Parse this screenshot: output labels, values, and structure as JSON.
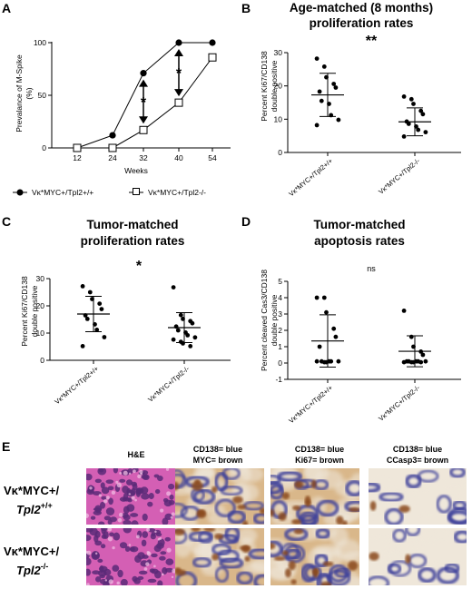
{
  "panels": {
    "A": {
      "label": "A"
    },
    "B": {
      "label": "B",
      "title_line1": "Age-matched (8 months)",
      "title_line2": "proliferation rates"
    },
    "C": {
      "label": "C",
      "title_line1": "Tumor-matched",
      "title_line2": "proliferation rates"
    },
    "D": {
      "label": "D",
      "title_line1": "Tumor-matched",
      "title_line2": "apoptosis rates"
    },
    "E": {
      "label": "E"
    }
  },
  "chart_data": [
    {
      "panel": "A",
      "type": "line",
      "x": [
        12,
        24,
        32,
        40,
        54
      ],
      "xlabel": "Weeks",
      "ylabel_line1": "Prevalance of M-Spike",
      "ylabel_line2": "(%)",
      "ylim": [
        0,
        100
      ],
      "yticks": [
        "0",
        "50",
        "100"
      ],
      "series": [
        {
          "name": "Vκ*MYC+/Tpl2+/+",
          "marker": "filled-circle",
          "values": [
            0,
            12,
            71,
            100,
            100
          ]
        },
        {
          "name": "Vκ*MYC+/Tpl2-/-",
          "marker": "open-square",
          "values": [
            0,
            0,
            17,
            43,
            86
          ]
        }
      ],
      "annotations": [
        "*",
        "*"
      ]
    },
    {
      "panel": "B",
      "type": "scatter",
      "categories": [
        "Vκ*MYC+/Tpl2+/+",
        "Vκ*MYC+/Tpl2-/-"
      ],
      "ylabel_line1": "Percent Ki67/CD138",
      "ylabel_line2": "double positive",
      "ylim": [
        0,
        30
      ],
      "yticks": [
        "0",
        "10",
        "20",
        "30"
      ],
      "points": [
        [
          28.2,
          25.8,
          22.6,
          20.6,
          19.5,
          18.3,
          15.5,
          14.6,
          11.2,
          9.8,
          8.2
        ],
        [
          16.8,
          16.0,
          14.6,
          12.5,
          11.5,
          9.3,
          8.6,
          7.8,
          6.8,
          6.1,
          4.8
        ]
      ],
      "mean": [
        17.3,
        9.2
      ],
      "sd": [
        6.5,
        4.2
      ],
      "significance": "**"
    },
    {
      "panel": "C",
      "type": "scatter",
      "categories": [
        "Vκ*MYC+/Tpl2+/+",
        "Vκ*MYC+/Tpl2-/-"
      ],
      "ylabel_line1": "Percent Ki67/CD138",
      "ylabel_line2": "double positive",
      "ylim": [
        0,
        30
      ],
      "yticks": [
        "0",
        "10",
        "20",
        "30"
      ],
      "points": [
        [
          27.2,
          25.0,
          22.5,
          20.8,
          18.8,
          16.5,
          15.2,
          13.2,
          11.2,
          8.5,
          5.2
        ],
        [
          26.8,
          16.6,
          15.2,
          14.4,
          13.6,
          12.4,
          11.0,
          10.2,
          9.2,
          8.4,
          7.6,
          6.8,
          6.2,
          5.2
        ]
      ],
      "mean": [
        17.0,
        12.0
      ],
      "sd": [
        6.5,
        5.5
      ],
      "significance": "*"
    },
    {
      "panel": "D",
      "type": "scatter",
      "categories": [
        "Vκ*MYC+/Tpl2+/+",
        "Vκ*MYC+/Tpl2-/-"
      ],
      "ylabel_line1": "Percent cleaved Cas3/CD138",
      "ylabel_line2": "double positive",
      "ylim": [
        -1,
        5
      ],
      "yticks": [
        "-1",
        "0",
        "1",
        "2",
        "3",
        "4",
        "5"
      ],
      "points": [
        [
          4.0,
          4.0,
          3.1,
          2.1,
          1.6,
          1.0,
          0.1,
          0.1,
          0.1,
          0.1,
          0.1,
          0.05,
          0.05
        ],
        [
          3.2,
          1.6,
          1.0,
          0.7,
          0.5,
          0.1,
          0.1,
          0.1,
          0.1,
          0.1,
          0.05,
          0.05,
          0.05,
          0.05
        ]
      ],
      "mean": [
        1.35,
        0.72
      ],
      "sd": [
        1.6,
        0.95
      ],
      "significance": "ns"
    }
  ],
  "histology": {
    "columns": [
      {
        "line1": "H&E",
        "line2": ""
      },
      {
        "line1": "CD138= blue",
        "line2": "MYC= brown"
      },
      {
        "line1": "CD138= blue",
        "line2": "Ki67= brown"
      },
      {
        "line1": "CD138= blue",
        "line2": "CCasp3= brown"
      }
    ],
    "rows": [
      {
        "line1": "Vκ*MYC+/",
        "gene": "Tpl2",
        "sup": "+/+"
      },
      {
        "line1": "Vκ*MYC+/",
        "gene": "Tpl2",
        "sup": "-/-"
      }
    ],
    "colors": {
      "he_bg": "#d45fb4",
      "he_nuc": "#5a2a78",
      "ihc_bg": "#d9b78a",
      "ihc_blue": "#3c3f9a",
      "ihc_brown": "#8a4a1c",
      "ihc_light": "#efe7da"
    }
  }
}
